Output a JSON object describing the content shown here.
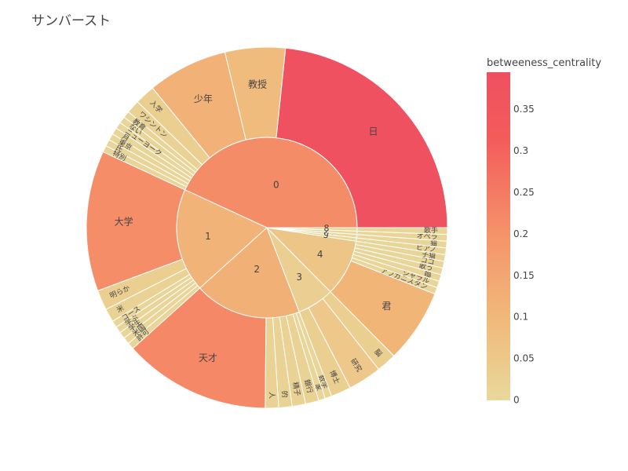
{
  "chart_data": {
    "type": "sunburst",
    "title": "サンバースト",
    "colorbar": {
      "title": "betweeness_centrality",
      "range": [
        0,
        0.395
      ],
      "ticks": [
        "0",
        "0.05",
        "0.1",
        "0.15",
        "0.2",
        "0.25",
        "0.3",
        "0.35"
      ],
      "tick_values": [
        0,
        0.05,
        0.1,
        0.15,
        0.2,
        0.25,
        0.3,
        0.35
      ],
      "colors": [
        "#e9d89b",
        "#f0b97a",
        "#f5946a",
        "#f35b5b",
        "#ef5060"
      ]
    },
    "groups": [
      {
        "label": "0",
        "children": [
          {
            "label": "日",
            "value": 0.39
          },
          {
            "label": "教授",
            "value": 0.09
          },
          {
            "label": "少年",
            "value": 0.12
          },
          {
            "label": "入学",
            "value": 0.03
          },
          {
            "label": "ワシントン",
            "value": 0.02
          },
          {
            "label": "教育",
            "value": 0.01
          },
          {
            "label": "ない",
            "value": 0.01
          },
          {
            "label": "ニューヨーク",
            "value": 0.01
          },
          {
            "label": "月",
            "value": 0.01
          },
          {
            "label": "東京",
            "value": 0.01
          },
          {
            "label": "氏",
            "value": 0.01
          },
          {
            "label": "特別",
            "value": 0.01
          }
        ]
      },
      {
        "label": "1",
        "children": [
          {
            "label": "大学",
            "value": 0.21
          },
          {
            "label": "明らか",
            "value": 0.03
          },
          {
            "label": "米",
            "value": 0.02
          },
          {
            "label": "コース",
            "value": 0.01
          },
          {
            "label": "学ぶ",
            "value": 0.01
          },
          {
            "label": "学生",
            "value": 0.01
          },
          {
            "label": "米国",
            "value": 0.01
          },
          {
            "label": "許可",
            "value": 0.01
          }
        ]
      },
      {
        "label": "2",
        "children": [
          {
            "label": "天才",
            "value": 0.22
          },
          {
            "label": "人",
            "value": 0.02
          },
          {
            "label": "的",
            "value": 0.02
          },
          {
            "label": "精子",
            "value": 0.02
          },
          {
            "label": "銀行",
            "value": 0.02
          },
          {
            "label": "家",
            "value": 0.01
          },
          {
            "label": "数学",
            "value": 0.01
          }
        ]
      },
      {
        "label": "3",
        "children": [
          {
            "label": "博士",
            "value": 0.03
          },
          {
            "label": "研究",
            "value": 0.05
          },
          {
            "label": "脳",
            "value": 0.03
          }
        ]
      },
      {
        "label": "4",
        "children": [
          {
            "label": "君",
            "value": 0.11
          },
          {
            "label": "アフガニスタン",
            "value": 0.01
          },
          {
            "label": "シャラル",
            "value": 0.01
          },
          {
            "label": "臨",
            "value": 0.01
          },
          {
            "label": "歌う",
            "value": 0.01
          },
          {
            "label": "ココ",
            "value": 0.01
          },
          {
            "label": "子猫",
            "value": 0.01
          }
        ]
      },
      {
        "label": "5",
        "children": [
          {
            "label": "ピアノ",
            "value": 0.01
          }
        ]
      },
      {
        "label": "6",
        "children": [
          {
            "label": "猫",
            "value": 0.01
          }
        ]
      },
      {
        "label": "7",
        "children": [
          {
            "label": "オペラ",
            "value": 0.01
          }
        ]
      },
      {
        "label": "8",
        "children": [
          {
            "label": "歌手",
            "value": 0.01
          }
        ]
      }
    ]
  }
}
